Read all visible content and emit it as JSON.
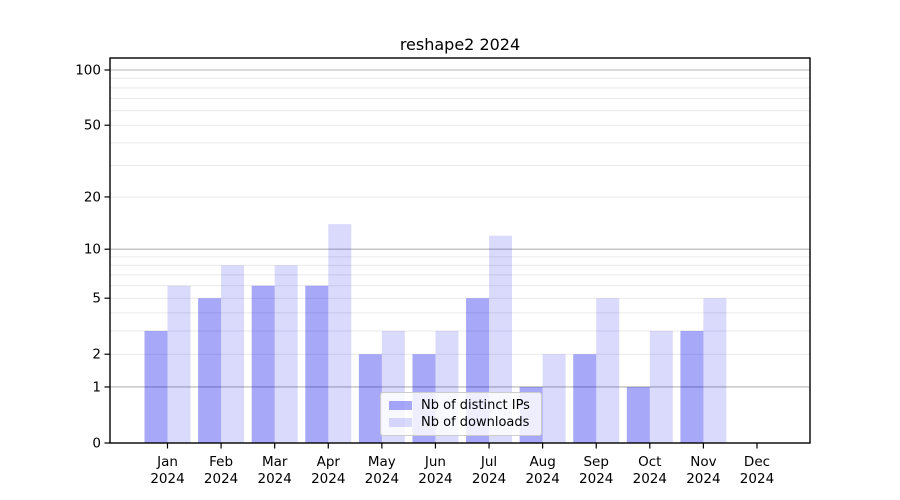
{
  "chart_data": {
    "type": "bar",
    "title": "reshape2 2024",
    "categories": [
      "Jan",
      "Feb",
      "Mar",
      "Apr",
      "May",
      "Jun",
      "Jul",
      "Aug",
      "Sep",
      "Oct",
      "Nov",
      "Dec"
    ],
    "year_label": "2024",
    "series": [
      {
        "name": "Nb of distinct IPs",
        "color": "rgba(0,0,238,0.34)",
        "values": [
          3,
          5,
          6,
          6,
          2,
          2,
          5,
          1,
          2,
          1,
          3,
          0
        ]
      },
      {
        "name": "Nb of downloads",
        "color": "rgba(0,0,238,0.145)",
        "values": [
          6,
          8,
          8,
          14,
          3,
          3,
          12,
          2,
          5,
          3,
          5,
          0
        ]
      }
    ],
    "yscale": "log1p",
    "ylim": [
      0,
      100
    ],
    "y_tick_values": [
      0,
      1,
      2,
      5,
      10,
      20,
      50,
      100
    ],
    "y_tick_labels": [
      "0",
      "1",
      "2",
      "5",
      "10",
      "20",
      "50",
      "100"
    ],
    "y_major_gridlines": [
      1,
      10,
      100
    ],
    "y_minor_gridlines": [
      2,
      3,
      4,
      5,
      6,
      7,
      8,
      9,
      20,
      30,
      40,
      50,
      60,
      70,
      80,
      90
    ],
    "grid": true,
    "legend_position": "lower center",
    "colors": {
      "axis": "#000000",
      "major_grid": "#b4b4b4",
      "minor_grid": "#e9e9e9",
      "text": "#000000"
    }
  }
}
